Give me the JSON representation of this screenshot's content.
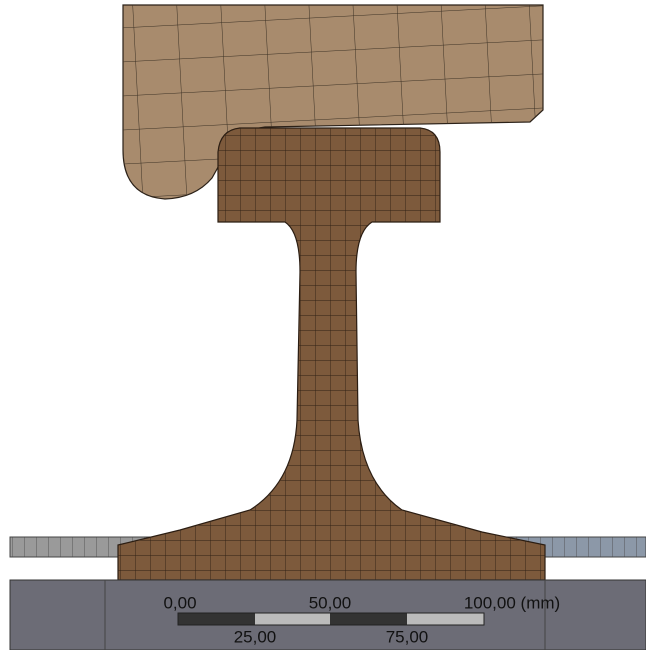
{
  "scale_bar": {
    "labels_top": [
      "0,00",
      "50,00",
      "100,00 (mm)"
    ],
    "labels_bottom": [
      "25,00",
      "75,00"
    ]
  }
}
